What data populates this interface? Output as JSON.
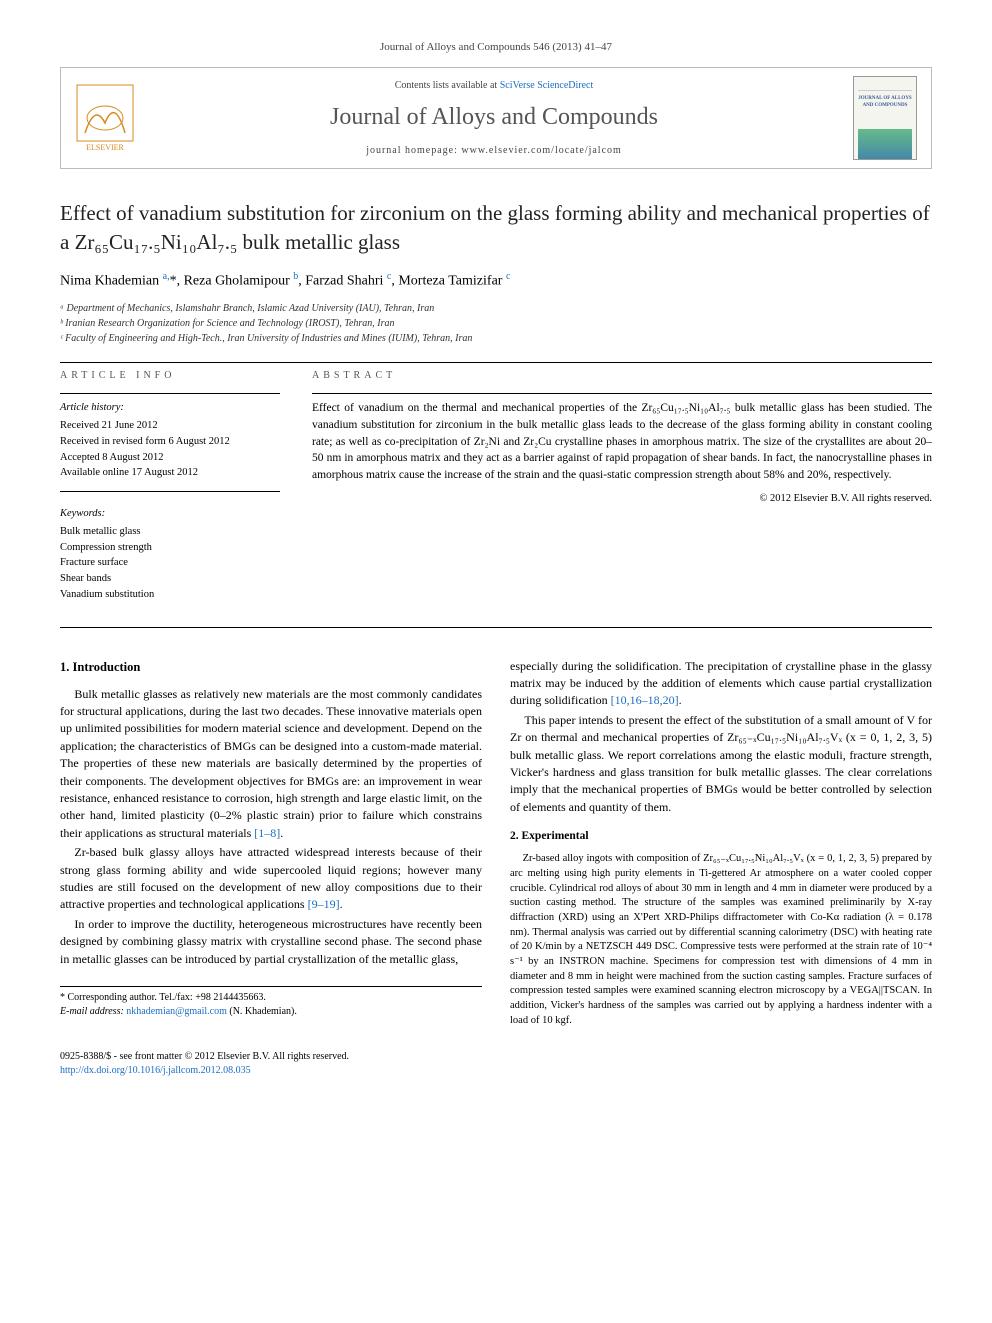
{
  "citation": "Journal of Alloys and Compounds 546 (2013) 41–47",
  "banner": {
    "contents_prefix": "Contents lists available at ",
    "contents_link": "SciVerse ScienceDirect",
    "journal": "Journal of Alloys and Compounds",
    "homepage_prefix": "journal homepage: ",
    "homepage_url": "www.elsevier.com/locate/jalcom",
    "cover_text": "JOURNAL OF ALLOYS AND COMPOUNDS"
  },
  "title": "Effect of vanadium substitution for zirconium on the glass forming ability and mechanical properties of a Zr₆₅Cu₁₇.₅Ni₁₀Al₇.₅ bulk metallic glass",
  "authors_html": "Nima Khademian <sup>a,</sup>*, Reza Gholamipour <sup>b</sup>, Farzad Shahri <sup>c</sup>, Morteza Tamizifar <sup>c</sup>",
  "affiliations": [
    "ᵃ Department of Mechanics, Islamshahr Branch, Islamic Azad University (IAU), Tehran, Iran",
    "ᵇ Iranian Research Organization for Science and Technology (IROST), Tehran, Iran",
    "ᶜ Faculty of Engineering and High-Tech., Iran University of Industries and Mines (IUIM), Tehran, Iran"
  ],
  "info_label": "article info",
  "abstract_label": "abstract",
  "history": {
    "title": "Article history:",
    "lines": [
      "Received 21 June 2012",
      "Received in revised form 6 August 2012",
      "Accepted 8 August 2012",
      "Available online 17 August 2012"
    ]
  },
  "keywords": {
    "title": "Keywords:",
    "items": [
      "Bulk metallic glass",
      "Compression strength",
      "Fracture surface",
      "Shear bands",
      "Vanadium substitution"
    ]
  },
  "abstract": "Effect of vanadium on the thermal and mechanical properties of the Zr₆₅Cu₁₇.₅Ni₁₀Al₇.₅ bulk metallic glass has been studied. The vanadium substitution for zirconium in the bulk metallic glass leads to the decrease of the glass forming ability in constant cooling rate; as well as co-precipitation of Zr₂Ni and Zr₂Cu crystalline phases in amorphous matrix. The size of the crystallites are about 20–50 nm in amorphous matrix and they act as a barrier against of rapid propagation of shear bands. In fact, the nanocrystalline phases in amorphous matrix cause the increase of the strain and the quasi-static compression strength about 58% and 20%, respectively.",
  "abstract_copyright": "© 2012 Elsevier B.V. All rights reserved.",
  "sections": {
    "intro_heading": "1. Introduction",
    "intro_p1": "Bulk metallic glasses as relatively new materials are the most commonly candidates for structural applications, during the last two decades. These innovative materials open up unlimited possibilities for modern material science and development. Depend on the application; the characteristics of BMGs can be designed into a custom-made material. The properties of these new materials are basically determined by the properties of their components. The development objectives for BMGs are: an improvement in wear resistance, enhanced resistance to corrosion, high strength and large elastic limit, on the other hand, limited plasticity (0–2% plastic strain) prior to failure which constrains their applications as structural materials ",
    "intro_p1_ref": "[1–8]",
    "intro_p2": "Zr-based bulk glassy alloys have attracted widespread interests because of their strong glass forming ability and wide supercooled liquid regions; however many studies are still focused on the development of new alloy compositions due to their attractive properties and technological applications ",
    "intro_p2_ref": "[9–19]",
    "intro_p3": "In order to improve the ductility, heterogeneous microstructures have recently been designed by combining glassy matrix with crystalline second phase. The second phase in metallic glasses can be introduced by partial crystallization of the metallic glass,",
    "col2_p1a": "especially during the solidification. The precipitation of crystalline phase in the glassy matrix may be induced by the addition of elements which cause partial crystallization during solidification ",
    "col2_p1_ref": "[10,16–18,20]",
    "col2_p2": "This paper intends to present the effect of the substitution of a small amount of V for Zr on thermal and mechanical properties of Zr₆₅₋ₓCu₁₇.₅Ni₁₀Al₇.₅Vₓ (x = 0, 1, 2, 3, 5) bulk metallic glass. We report correlations among the elastic moduli, fracture strength, Vicker's hardness and glass transition for bulk metallic glasses. The clear correlations imply that the mechanical properties of BMGs would be better controlled by selection of elements and quantity of them.",
    "exp_heading": "2. Experimental",
    "exp_p1": "Zr-based alloy ingots with composition of Zr₆₅₋ₓCu₁₇.₅Ni₁₀Al₇.₅Vₓ (x = 0, 1, 2, 3, 5) prepared by arc melting using high purity elements in Ti-gettered Ar atmosphere on a water cooled copper crucible. Cylindrical rod alloys of about 30 mm in length and 4 mm in diameter were produced by a suction casting method. The structure of the samples was examined preliminarily by X-ray diffraction (XRD) using an X'Pert XRD-Philips diffractometer with Co-Kα radiation (λ = 0.178 nm). Thermal analysis was carried out by differential scanning calorimetry (DSC) with heating rate of 20 K/min by a NETZSCH 449 DSC. Compressive tests were performed at the strain rate of 10⁻⁴ s⁻¹ by an INSTRON machine. Specimens for compression test with dimensions of 4 mm in diameter and 8 mm in height were machined from the suction casting samples. Fracture surfaces of compression tested samples were examined scanning electron microscopy by a VEGA||TSCAN. In addition, Vicker's hardness of the samples was carried out by applying a hardness indenter with a load of 10 kgf."
  },
  "footnote": {
    "corresponding": "* Corresponding author. Tel./fax: +98 2144435663.",
    "email_label": "E-mail address: ",
    "email": "nkhademian@gmail.com",
    "email_suffix": " (N. Khademian)."
  },
  "footer": {
    "issn_line": "0925-8388/$ - see front matter © 2012 Elsevier B.V. All rights reserved.",
    "doi": "http://dx.doi.org/10.1016/j.jallcom.2012.08.035"
  },
  "colors": {
    "link": "#1b6ec2",
    "text": "#000000",
    "muted": "#555555",
    "rule": "#000000"
  }
}
